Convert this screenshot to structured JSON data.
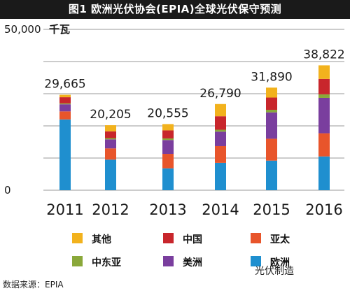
{
  "title": "图1  欧洲光伏协会(EPIA)全球光伏保守预测",
  "chart_data": {
    "type": "bar",
    "stacked": true,
    "categories": [
      "2011",
      "2012",
      "2013",
      "2014",
      "2015",
      "2016"
    ],
    "totals": [
      "29,665",
      "20,205",
      "20,555",
      "26,790",
      "31,890",
      "38,822"
    ],
    "ylim": [
      0,
      50000
    ],
    "yticks": [
      0,
      10000,
      20000,
      30000,
      40000,
      50000
    ],
    "ytick_labels": [
      "0",
      "",
      "",
      "",
      "",
      "50,000"
    ],
    "ylabel": "千瓦",
    "grid": true,
    "legend_position": "bottom",
    "series": [
      {
        "name": "欧洲",
        "color": "#1f8fcf",
        "values": [
          22000,
          9500,
          6800,
          8500,
          9200,
          10500
        ]
      },
      {
        "name": "亚太",
        "color": "#e8552b",
        "values": [
          2500,
          3500,
          4500,
          5200,
          6800,
          7200
        ]
      },
      {
        "name": "美洲",
        "color": "#7a3e9e",
        "values": [
          2200,
          2800,
          4300,
          4500,
          8200,
          11000
        ]
      },
      {
        "name": "中东亚",
        "color": "#8aa83a",
        "values": [
          300,
          400,
          500,
          600,
          800,
          1100
        ]
      },
      {
        "name": "中国",
        "color": "#c8262c",
        "values": [
          1900,
          2100,
          2500,
          4200,
          3800,
          4800
        ]
      },
      {
        "name": "其他",
        "color": "#f2b21d",
        "values": [
          765,
          1905,
          1955,
          3790,
          3090,
          4222
        ]
      }
    ]
  },
  "legend": [
    {
      "label": "其他",
      "color": "#f2b21d"
    },
    {
      "label": "中国",
      "color": "#c8262c"
    },
    {
      "label": "亚太",
      "color": "#e8552b"
    },
    {
      "label": "中东亚",
      "color": "#8aa83a"
    },
    {
      "label": "美洲",
      "color": "#7a3e9e"
    },
    {
      "label": "欧洲",
      "color": "#1f8fcf"
    }
  ],
  "source": "数据来源：EPIA",
  "watermark": "光伏制造"
}
